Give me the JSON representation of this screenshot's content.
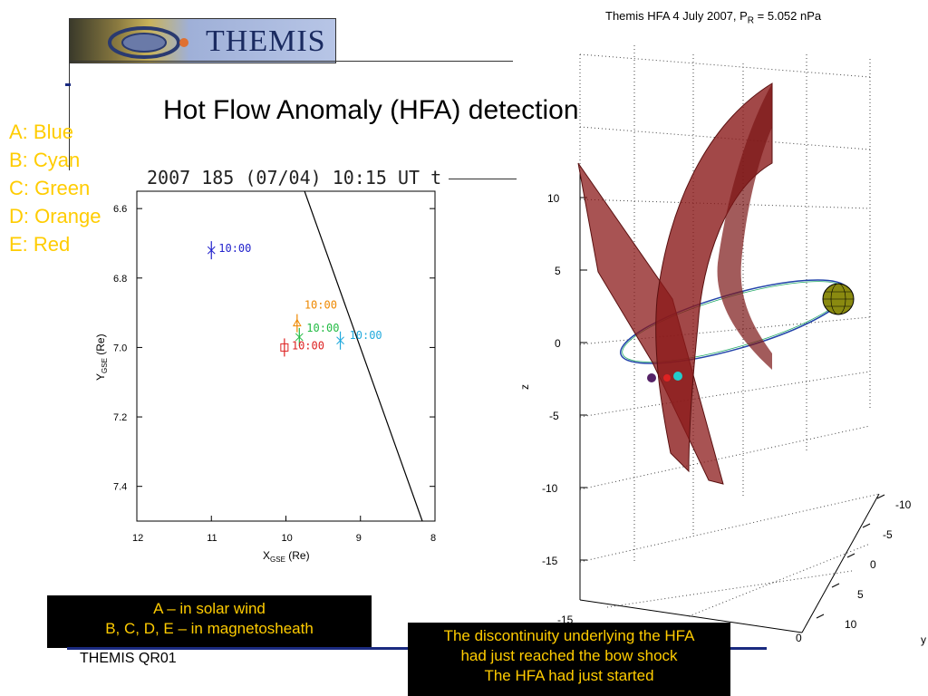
{
  "header": {
    "logo_text": "THEMIS",
    "slide_title": "Hot Flow Anomaly (HFA) detection"
  },
  "legend": {
    "items": [
      "A: Blue",
      "B: Cyan",
      "C: Green",
      "D: Orange",
      "E: Red"
    ],
    "color": "#ffcc00"
  },
  "left_plot": {
    "title": "2007 185 (07/04) 10:15 UT t",
    "xlabel": "X",
    "xlabel_sub": "GSE",
    "xlabel_unit": " (Re)",
    "ylabel": "Y",
    "ylabel_sub": "GSE",
    "ylabel_unit": " (Re)",
    "x_ticks": [
      "12",
      "11",
      "10",
      "9",
      "8"
    ],
    "y_ticks": [
      "6.6",
      "6.8",
      "7.0",
      "7.2",
      "7.4"
    ],
    "marker_label": "10:00"
  },
  "chart_data": {
    "type": "scatter",
    "xlim": [
      12,
      8
    ],
    "ylim": [
      6.55,
      7.5
    ],
    "y_inverted": true,
    "series": [
      {
        "probe": "A",
        "color": "#2222cc",
        "x": 11.0,
        "y": 6.72,
        "label": "10:00"
      },
      {
        "probe": "B",
        "color": "#22aadd",
        "x": 9.27,
        "y": 6.98,
        "label": "10:00"
      },
      {
        "probe": "C",
        "color": "#22bb44",
        "x": 9.82,
        "y": 6.97,
        "label": "10:00"
      },
      {
        "probe": "D",
        "color": "#ee8800",
        "x": 9.85,
        "y": 6.93,
        "label": "10:00"
      },
      {
        "probe": "E",
        "color": "#dd2222",
        "x": 10.02,
        "y": 7.0,
        "label": "10:00"
      }
    ],
    "boundary_line": [
      [
        9.75,
        6.55
      ],
      [
        8.17,
        7.5
      ]
    ]
  },
  "right_plot": {
    "title_prefix": "Themis HFA 4 July 2007, P",
    "title_sub": "R",
    "title_suffix": " = 5.052 nPa",
    "z_label": "z",
    "y_label": "y",
    "z_ticks": [
      "10",
      "5",
      "0",
      "-5",
      "-10",
      "-15"
    ],
    "y_ticks": [
      "-10",
      "-5",
      "0",
      "5",
      "10"
    ],
    "x_tick_partial": "-15",
    "x_tick_zero": "0"
  },
  "notes": {
    "box1_line1": "A – in solar wind",
    "box1_line2": "B, C, D, E – in magnetosheath",
    "box2_line1": "The discontinuity underlying the HFA",
    "box2_line2": "had just reached the bow shock",
    "box2_line3": "The HFA had just started"
  },
  "footer": {
    "text": "THEMIS QR01"
  }
}
